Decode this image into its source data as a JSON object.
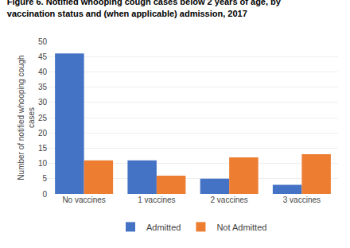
{
  "chart_data": {
    "type": "bar",
    "title": "Figure 6. Notified whooping cough cases below 2 years of age, by\nvaccination status and (when applicable) admission, 2017",
    "ylabel": "Number of notified whooping cough\ncases",
    "categories": [
      "No vaccines",
      "1 vaccines",
      "2 vaccines",
      "3 vaccines"
    ],
    "series": [
      {
        "name": "Admitted",
        "color": "#4472C4",
        "values": [
          46,
          11,
          5,
          3
        ]
      },
      {
        "name": "Not Admitted",
        "color": "#ED7D31",
        "values": [
          11,
          6,
          12,
          13
        ]
      }
    ],
    "ylim": [
      0,
      50
    ],
    "yticks": [
      0,
      5,
      10,
      15,
      20,
      25,
      30,
      35,
      40,
      45,
      50
    ],
    "grid": true,
    "legend": "bottom"
  }
}
